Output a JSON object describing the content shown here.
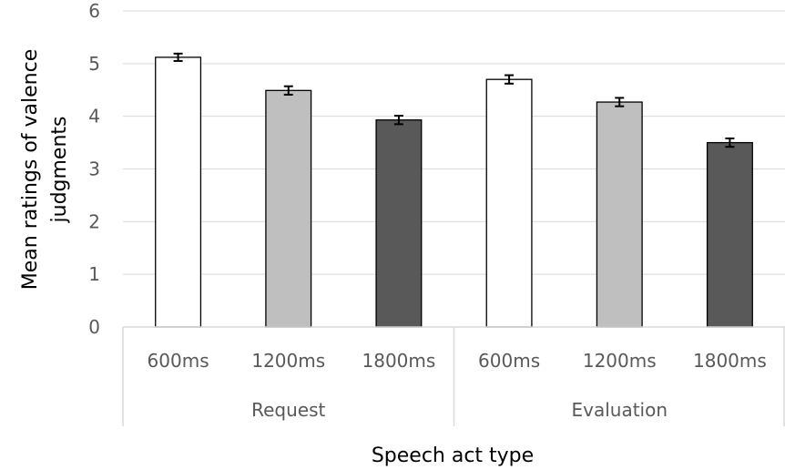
{
  "chart_data": {
    "type": "bar",
    "title": "",
    "xlabel": "Speech act type",
    "ylabel_lines": [
      "Mean ratings of valence",
      "judgments"
    ],
    "ylim": [
      0,
      6
    ],
    "yticks": [
      "0",
      "1",
      "2",
      "3",
      "4",
      "5",
      "6"
    ],
    "grid": true,
    "groups": [
      {
        "name": "Request",
        "bars": [
          {
            "label": "600ms",
            "value": 5.12,
            "error": 0.07
          },
          {
            "label": "1200ms",
            "value": 4.49,
            "error": 0.08
          },
          {
            "label": "1800ms",
            "value": 3.93,
            "error": 0.08
          }
        ]
      },
      {
        "name": "Evaluation",
        "bars": [
          {
            "label": "600ms",
            "value": 4.7,
            "error": 0.08
          },
          {
            "label": "1200ms",
            "value": 4.27,
            "error": 0.08
          },
          {
            "label": "1800ms",
            "value": 3.5,
            "error": 0.08
          }
        ]
      }
    ],
    "colors": {
      "600ms": "#ffffff",
      "1200ms": "#bfbfbf",
      "1800ms": "#595959",
      "bar_outline": "#000000",
      "grid": "#d9d9d9",
      "axis": "#d9d9d9"
    }
  }
}
